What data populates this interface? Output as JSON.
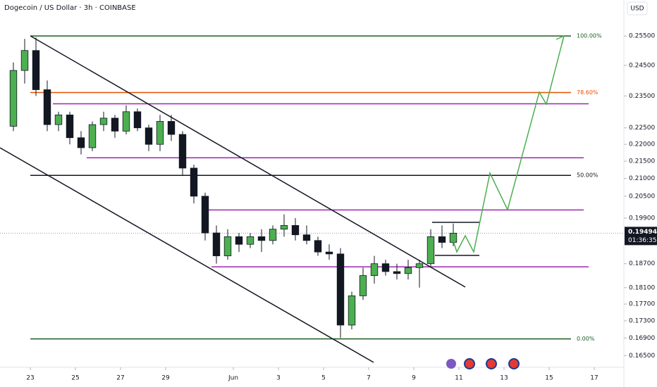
{
  "chart_data": {
    "type": "candlestick",
    "title": "Dogecoin / US Dollar · 3h · COINBASE",
    "currency": "USD",
    "log_scale": true,
    "up_color": "#4caf50",
    "down_color": "#131722",
    "ylim": [
      0.1627,
      0.2678
    ],
    "yticks": [
      {
        "value": 0.255,
        "label": "0.25500"
      },
      {
        "value": 0.245,
        "label": "0.24500"
      },
      {
        "value": 0.235,
        "label": "0.23500"
      },
      {
        "value": 0.225,
        "label": "0.22500"
      },
      {
        "value": 0.22,
        "label": "0.22000"
      },
      {
        "value": 0.215,
        "label": "0.21500"
      },
      {
        "value": 0.21,
        "label": "0.21000"
      },
      {
        "value": 0.205,
        "label": "0.20500"
      },
      {
        "value": 0.199,
        "label": "0.19900"
      },
      {
        "value": 0.187,
        "label": "0.18700"
      },
      {
        "value": 0.181,
        "label": "0.18100"
      },
      {
        "value": 0.177,
        "label": "0.17700"
      },
      {
        "value": 0.173,
        "label": "0.17300"
      },
      {
        "value": 0.169,
        "label": "0.16900"
      },
      {
        "value": 0.165,
        "label": "0.16500"
      }
    ],
    "xlim": [
      -0.6875,
      54.625
    ],
    "xticks": [
      {
        "value": 2,
        "label": "23"
      },
      {
        "value": 6,
        "label": "25"
      },
      {
        "value": 10,
        "label": "27"
      },
      {
        "value": 14,
        "label": "29"
      },
      {
        "value": 20,
        "label": "Jun"
      },
      {
        "value": 24,
        "label": "3"
      },
      {
        "value": 28,
        "label": "5"
      },
      {
        "value": 32,
        "label": "7"
      },
      {
        "value": 36,
        "label": "9"
      },
      {
        "value": 40,
        "label": "11"
      },
      {
        "value": 44,
        "label": "13"
      },
      {
        "value": 48,
        "label": "15"
      },
      {
        "value": 52,
        "label": "17"
      }
    ],
    "x": [
      0.5,
      1.5,
      2.5,
      3.5,
      4.5,
      5.5,
      6.5,
      7.5,
      8.5,
      9.5,
      10.5,
      11.5,
      12.5,
      13.5,
      14.5,
      15.5,
      16.5,
      17.5,
      18.5,
      19.5,
      20.5,
      21.5,
      22.5,
      23.5,
      24.5,
      25.5,
      26.5,
      27.5,
      28.5,
      29.5,
      30.5,
      31.5,
      32.5,
      33.5,
      34.5,
      35.5,
      36.5,
      37.5,
      38.5,
      39.5
    ],
    "open": [
      0.2255,
      0.2433,
      0.25,
      0.237,
      0.226,
      0.229,
      0.222,
      0.219,
      0.226,
      0.228,
      0.224,
      0.23,
      0.225,
      0.22,
      0.227,
      0.223,
      0.213,
      0.205,
      0.195,
      0.189,
      0.194,
      0.192,
      0.194,
      0.193,
      0.196,
      0.197,
      0.1945,
      0.193,
      0.19,
      0.1895,
      0.172,
      0.179,
      0.184,
      0.187,
      0.185,
      0.1845,
      0.186,
      0.187,
      0.194,
      0.1925
    ],
    "high": [
      0.246,
      0.254,
      0.2545,
      0.24,
      0.23,
      0.23,
      0.224,
      0.227,
      0.23,
      0.229,
      0.232,
      0.231,
      0.226,
      0.229,
      0.229,
      0.224,
      0.214,
      0.206,
      0.197,
      0.196,
      0.195,
      0.195,
      0.196,
      0.197,
      0.2,
      0.199,
      0.197,
      0.194,
      0.192,
      0.191,
      0.18,
      0.186,
      0.189,
      0.188,
      0.187,
      0.188,
      0.188,
      0.196,
      0.197,
      0.1975
    ],
    "low": [
      0.224,
      0.239,
      0.235,
      0.224,
      0.224,
      0.22,
      0.217,
      0.218,
      0.224,
      0.222,
      0.223,
      0.224,
      0.218,
      0.218,
      0.221,
      0.211,
      0.203,
      0.193,
      0.187,
      0.188,
      0.19,
      0.191,
      0.19,
      0.192,
      0.194,
      0.193,
      0.192,
      0.189,
      0.188,
      0.169,
      0.171,
      0.178,
      0.182,
      0.184,
      0.183,
      0.183,
      0.181,
      0.186,
      0.191,
      0.1915
    ],
    "close": [
      0.2433,
      0.25,
      0.237,
      0.226,
      0.229,
      0.222,
      0.219,
      0.226,
      0.228,
      0.224,
      0.23,
      0.225,
      0.22,
      0.227,
      0.223,
      0.213,
      0.205,
      0.195,
      0.189,
      0.194,
      0.192,
      0.194,
      0.193,
      0.196,
      0.197,
      0.1945,
      0.193,
      0.19,
      0.1895,
      0.172,
      0.179,
      0.184,
      0.187,
      0.185,
      0.1845,
      0.186,
      0.187,
      0.194,
      0.1925,
      0.19494
    ],
    "last_price": {
      "value": 0.19494,
      "label": "0.19494"
    },
    "countdown": "01:36:35",
    "fib_levels": [
      {
        "value": 0.255,
        "label": "100.00%",
        "color": "#1b5e20"
      },
      {
        "value": 0.2361,
        "label": "78.60%",
        "color": "#e65100"
      },
      {
        "value": 0.2109,
        "label": "50.00%",
        "color": "#131722"
      },
      {
        "value": 0.1688,
        "label": "0.00%",
        "color": "#1b5e20"
      }
    ],
    "zones": [
      0.2325,
      0.216,
      0.2012,
      0.1862
    ],
    "zone_color": "#9c27b0"
  }
}
